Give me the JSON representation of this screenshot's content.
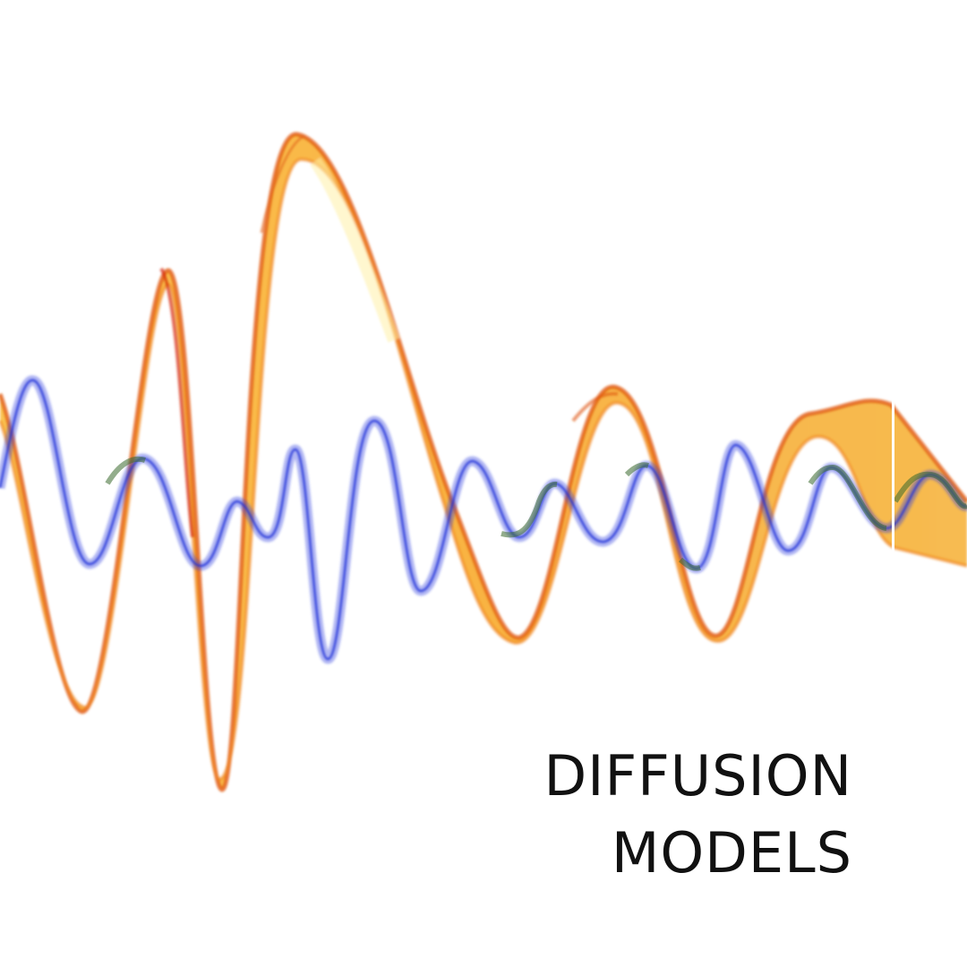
{
  "title": {
    "line1": "DIFFUSION",
    "line2": "MODELS"
  },
  "colors": {
    "background": "#ffffff",
    "orange_ribbon": "#f7a21b",
    "orange_edge": "#e0560f",
    "blue_ribbon": "#2e3fe0",
    "green_tint": "#3a6a2e",
    "text": "#111111"
  }
}
